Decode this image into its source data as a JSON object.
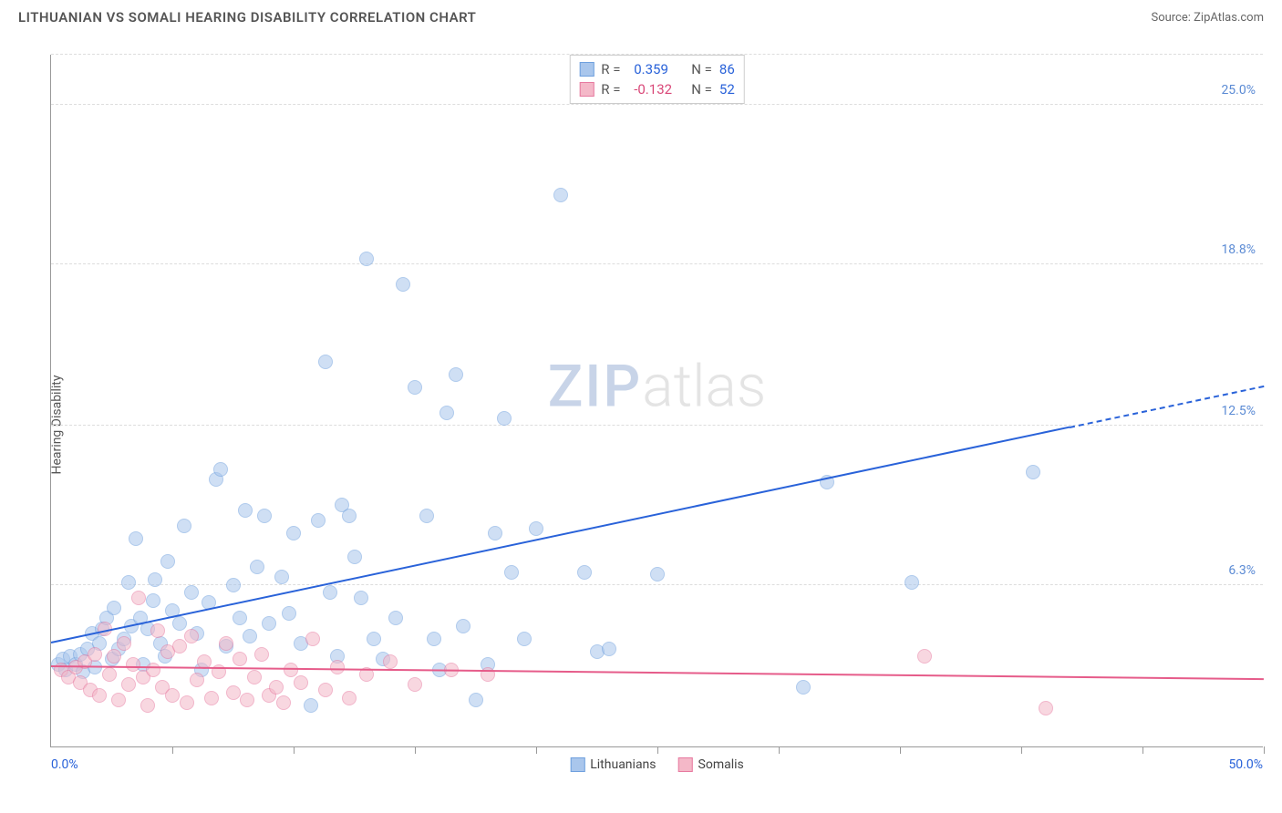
{
  "title": "LITHUANIAN VS SOMALI HEARING DISABILITY CORRELATION CHART",
  "source": "Source: ZipAtlas.com",
  "ylabel": "Hearing Disability",
  "watermark": {
    "part1": "ZIP",
    "part2": "atlas"
  },
  "chart": {
    "type": "scatter",
    "xlim": [
      0,
      50
    ],
    "ylim": [
      0,
      27
    ],
    "x_axis_labels": {
      "min": "0.0%",
      "max": "50.0%"
    },
    "y_ticks": [
      {
        "v": 6.3,
        "label": "6.3%"
      },
      {
        "v": 12.5,
        "label": "12.5%"
      },
      {
        "v": 18.8,
        "label": "18.8%"
      },
      {
        "v": 25.0,
        "label": "25.0%"
      }
    ],
    "y_tick_color": "#5a8ad4",
    "x_tick_positions": [
      5,
      10,
      15,
      20,
      25,
      30,
      35,
      40,
      45,
      50
    ],
    "grid_color": "#dddddd",
    "background_color": "#ffffff",
    "marker_radius": 8,
    "marker_opacity": 0.55,
    "series": [
      {
        "name": "Lithuanians",
        "color_fill": "#a9c6ec",
        "color_stroke": "#6fa0de",
        "r_label": "R =",
        "r_value": "0.359",
        "n_label": "N =",
        "n_value": "86",
        "r_color": "#2962d9",
        "trend": {
          "x1": 0,
          "y1": 4.0,
          "x2": 50,
          "y2": 14.0,
          "color": "#2962d9",
          "dash_from_x": 42
        },
        "points": [
          [
            0.3,
            3.2
          ],
          [
            0.5,
            3.4
          ],
          [
            0.6,
            3.0
          ],
          [
            0.8,
            3.5
          ],
          [
            1.0,
            3.2
          ],
          [
            1.2,
            3.6
          ],
          [
            1.3,
            2.9
          ],
          [
            1.5,
            3.8
          ],
          [
            1.7,
            4.4
          ],
          [
            1.8,
            3.1
          ],
          [
            2.0,
            4.0
          ],
          [
            2.1,
            4.6
          ],
          [
            2.3,
            5.0
          ],
          [
            2.5,
            3.4
          ],
          [
            2.6,
            5.4
          ],
          [
            2.8,
            3.8
          ],
          [
            3.0,
            4.2
          ],
          [
            3.2,
            6.4
          ],
          [
            3.3,
            4.7
          ],
          [
            3.5,
            8.1
          ],
          [
            3.7,
            5.0
          ],
          [
            3.8,
            3.2
          ],
          [
            4.0,
            4.6
          ],
          [
            4.2,
            5.7
          ],
          [
            4.3,
            6.5
          ],
          [
            4.5,
            4.0
          ],
          [
            4.7,
            3.5
          ],
          [
            4.8,
            7.2
          ],
          [
            5.0,
            5.3
          ],
          [
            5.3,
            4.8
          ],
          [
            5.5,
            8.6
          ],
          [
            5.8,
            6.0
          ],
          [
            6.0,
            4.4
          ],
          [
            6.2,
            3.0
          ],
          [
            6.5,
            5.6
          ],
          [
            6.8,
            10.4
          ],
          [
            7.0,
            10.8
          ],
          [
            7.2,
            3.9
          ],
          [
            7.5,
            6.3
          ],
          [
            7.8,
            5.0
          ],
          [
            8.0,
            9.2
          ],
          [
            8.2,
            4.3
          ],
          [
            8.5,
            7.0
          ],
          [
            8.8,
            9.0
          ],
          [
            9.0,
            4.8
          ],
          [
            9.5,
            6.6
          ],
          [
            9.8,
            5.2
          ],
          [
            10.0,
            8.3
          ],
          [
            10.3,
            4.0
          ],
          [
            10.7,
            1.6
          ],
          [
            11.0,
            8.8
          ],
          [
            11.3,
            15.0
          ],
          [
            11.5,
            6.0
          ],
          [
            11.8,
            3.5
          ],
          [
            12.0,
            9.4
          ],
          [
            12.3,
            9.0
          ],
          [
            12.5,
            7.4
          ],
          [
            12.8,
            5.8
          ],
          [
            13.0,
            19.0
          ],
          [
            13.3,
            4.2
          ],
          [
            13.7,
            3.4
          ],
          [
            14.2,
            5.0
          ],
          [
            14.5,
            18.0
          ],
          [
            15.0,
            14.0
          ],
          [
            15.5,
            9.0
          ],
          [
            15.8,
            4.2
          ],
          [
            16.0,
            3.0
          ],
          [
            16.3,
            13.0
          ],
          [
            16.7,
            14.5
          ],
          [
            17.0,
            4.7
          ],
          [
            17.5,
            1.8
          ],
          [
            18.0,
            3.2
          ],
          [
            18.3,
            8.3
          ],
          [
            18.7,
            12.8
          ],
          [
            19.0,
            6.8
          ],
          [
            19.5,
            4.2
          ],
          [
            20.0,
            8.5
          ],
          [
            21.0,
            21.5
          ],
          [
            22.0,
            6.8
          ],
          [
            22.5,
            3.7
          ],
          [
            23.0,
            3.8
          ],
          [
            25.0,
            6.7
          ],
          [
            31.0,
            2.3
          ],
          [
            32.0,
            10.3
          ],
          [
            35.5,
            6.4
          ],
          [
            40.5,
            10.7
          ]
        ]
      },
      {
        "name": "Somalis",
        "color_fill": "#f4b8c8",
        "color_stroke": "#e77aa0",
        "r_label": "R =",
        "r_value": "-0.132",
        "n_label": "N =",
        "n_value": "52",
        "r_color": "#d94878",
        "trend": {
          "x1": 0,
          "y1": 3.1,
          "x2": 50,
          "y2": 2.6,
          "color": "#e65c8a",
          "dash_from_x": 50
        },
        "points": [
          [
            0.4,
            3.0
          ],
          [
            0.7,
            2.7
          ],
          [
            1.0,
            3.1
          ],
          [
            1.2,
            2.5
          ],
          [
            1.4,
            3.3
          ],
          [
            1.6,
            2.2
          ],
          [
            1.8,
            3.6
          ],
          [
            2.0,
            2.0
          ],
          [
            2.2,
            4.6
          ],
          [
            2.4,
            2.8
          ],
          [
            2.6,
            3.5
          ],
          [
            2.8,
            1.8
          ],
          [
            3.0,
            4.0
          ],
          [
            3.2,
            2.4
          ],
          [
            3.4,
            3.2
          ],
          [
            3.6,
            5.8
          ],
          [
            3.8,
            2.7
          ],
          [
            4.0,
            1.6
          ],
          [
            4.2,
            3.0
          ],
          [
            4.4,
            4.5
          ],
          [
            4.6,
            2.3
          ],
          [
            4.8,
            3.7
          ],
          [
            5.0,
            2.0
          ],
          [
            5.3,
            3.9
          ],
          [
            5.6,
            1.7
          ],
          [
            5.8,
            4.3
          ],
          [
            6.0,
            2.6
          ],
          [
            6.3,
            3.3
          ],
          [
            6.6,
            1.9
          ],
          [
            6.9,
            2.9
          ],
          [
            7.2,
            4.0
          ],
          [
            7.5,
            2.1
          ],
          [
            7.8,
            3.4
          ],
          [
            8.1,
            1.8
          ],
          [
            8.4,
            2.7
          ],
          [
            8.7,
            3.6
          ],
          [
            9.0,
            2.0
          ],
          [
            9.3,
            2.3
          ],
          [
            9.6,
            1.7
          ],
          [
            9.9,
            3.0
          ],
          [
            10.3,
            2.5
          ],
          [
            10.8,
            4.2
          ],
          [
            11.3,
            2.2
          ],
          [
            11.8,
            3.1
          ],
          [
            12.3,
            1.9
          ],
          [
            13.0,
            2.8
          ],
          [
            14.0,
            3.3
          ],
          [
            15.0,
            2.4
          ],
          [
            16.5,
            3.0
          ],
          [
            18.0,
            2.8
          ],
          [
            36.0,
            3.5
          ],
          [
            41.0,
            1.5
          ]
        ]
      }
    ]
  },
  "legend_bottom": [
    {
      "swatch_fill": "#a9c6ec",
      "swatch_stroke": "#6fa0de",
      "label": "Lithuanians"
    },
    {
      "swatch_fill": "#f4b8c8",
      "swatch_stroke": "#e77aa0",
      "label": "Somalis"
    }
  ]
}
